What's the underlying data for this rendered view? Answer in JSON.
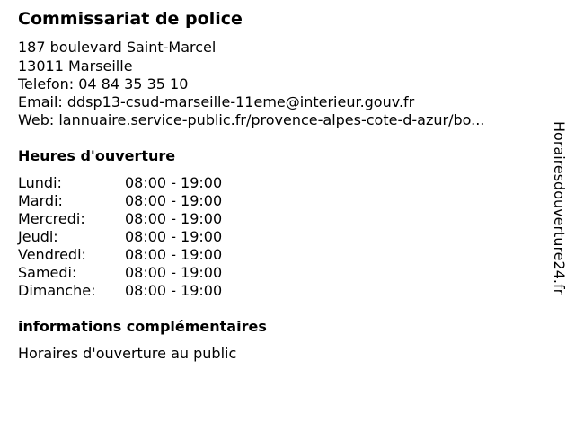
{
  "title": "Commissariat de police",
  "contact": {
    "address": "187 boulevard Saint-Marcel",
    "city": "13011 Marseille",
    "phone": "Telefon: 04 84 35 35 10",
    "email": "Email: ddsp13-csud-marseille-11eme@interieur.gouv.fr",
    "web": "Web: lannuaire.service-public.fr/provence-alpes-cote-d-azur/bo..."
  },
  "hours_heading": "Heures d'ouverture",
  "hours": [
    {
      "day": "Lundi:",
      "time": "08:00 - 19:00"
    },
    {
      "day": "Mardi:",
      "time": "08:00 - 19:00"
    },
    {
      "day": "Mercredi:",
      "time": "08:00 - 19:00"
    },
    {
      "day": "Jeudi:",
      "time": "08:00 - 19:00"
    },
    {
      "day": "Vendredi:",
      "time": "08:00 - 19:00"
    },
    {
      "day": "Samedi:",
      "time": "08:00 - 19:00"
    },
    {
      "day": "Dimanche:",
      "time": "08:00 - 19:00"
    }
  ],
  "info_heading": "informations complémentaires",
  "info_text": "Horaires d'ouverture au public",
  "watermark": "Horairesdouverture24.fr"
}
